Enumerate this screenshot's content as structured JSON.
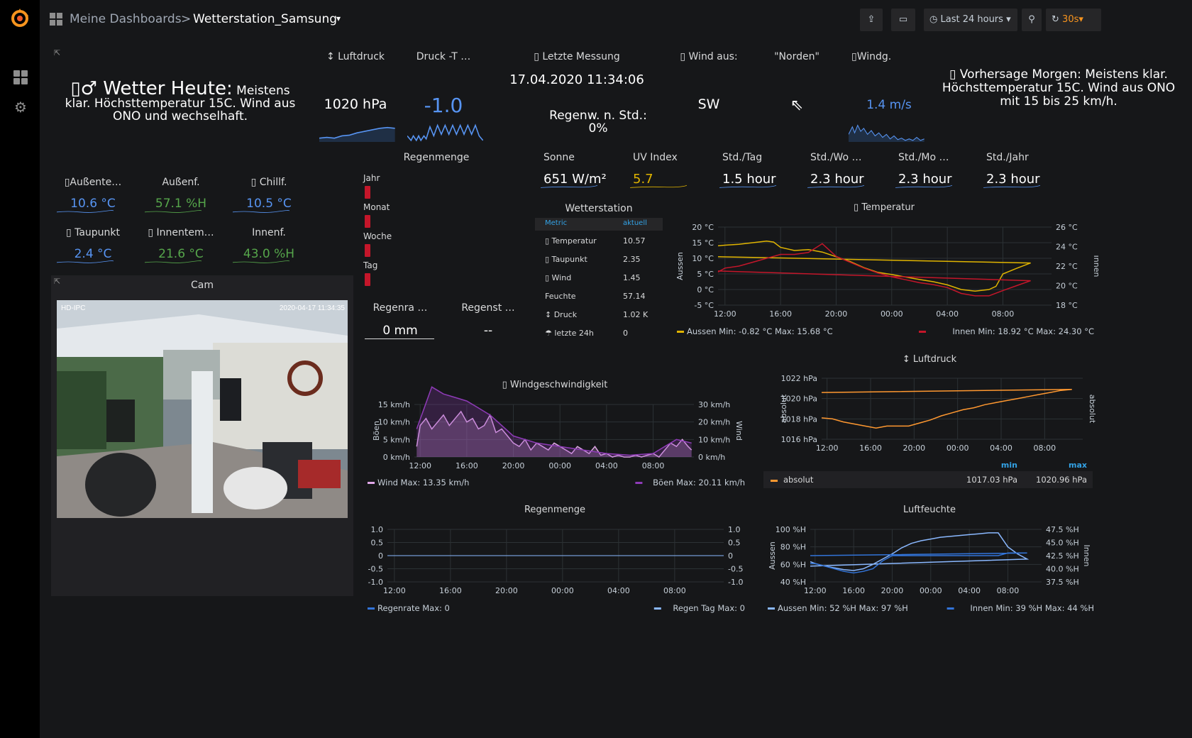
{
  "breadcrumb": {
    "parent": "Meine Dashboards",
    "separator": ">",
    "current": "Wetterstation_Samsung",
    "caret": "▾"
  },
  "toolbar": {
    "time_range": "Last 24 hours",
    "refresh": "30s"
  },
  "colors": {
    "accent": "#f7941e",
    "blue": "#5794f2",
    "lightblue": "#33a2e5",
    "green": "#56a64b",
    "yellow": "#e0b400",
    "red": "#c4162a",
    "purple": "#d683ce",
    "orange": "#ff9830"
  },
  "icons": {
    "logo": "grafana-logo-icon",
    "dashboards": "dashboards-grid-icon",
    "config": "gear-icon",
    "share": "share-icon",
    "tv": "tv-mode-icon",
    "clock": "clock-icon",
    "zoom": "zoom-out-icon",
    "refresh": "refresh-icon",
    "link": "panel-link-icon"
  },
  "wetter_heute": {
    "title": "▯♂ Wetter Heute:",
    "text": "Meistens klar. Höchsttemperatur 15C. Wind aus ONO und wechselhaft."
  },
  "stats": {
    "luftdruck": {
      "title": "↕ Luftdruck",
      "value": "1020 hPa"
    },
    "druck_t": {
      "title": "Druck -T …",
      "value": "-1.0"
    },
    "letzte_messung": {
      "title": "▯ Letzte Messung",
      "value": "17.04.2020 11:34:06"
    },
    "regenw": {
      "label": "Regenw. n. Std.:",
      "value": "0%"
    },
    "wind_aus": {
      "title": "▯ Wind aus:",
      "value": "SW"
    },
    "norden": {
      "title": "\"Norden\"",
      "value": "⇖"
    },
    "windg": {
      "title": "▯Windg.",
      "value": "1.4 m/s"
    },
    "vorhersage": {
      "text": "▯ Vorhersage Morgen: Meistens klar. Höchsttemperatur 15C. Wind aus ONO mit 15 bis 25 km/h."
    }
  },
  "sensors": [
    {
      "title": "▯Außente…",
      "value": "10.6 °C",
      "color": "#5794f2"
    },
    {
      "title": "Außenf.",
      "value": "57.1 %H",
      "color": "#56a64b"
    },
    {
      "title": "▯ Chillf.",
      "value": "10.5 °C",
      "color": "#5794f2"
    },
    {
      "title": "▯ Taupunkt",
      "value": "2.4 °C",
      "color": "#5794f2"
    },
    {
      "title": "▯ Innentem…",
      "value": "21.6 °C",
      "color": "#56a64b"
    },
    {
      "title": "Innenf.",
      "value": "43.0 %H",
      "color": "#56a64b"
    }
  ],
  "cam": {
    "title": "Cam",
    "osd_left": "HD-IPC",
    "osd_right": "2020-04-17 11:34:35"
  },
  "regenmenge_bars": {
    "title": "Regenmenge",
    "items": [
      "Jahr",
      "Monat",
      "Woche",
      "Tag"
    ]
  },
  "regenrate": {
    "title": "Regenra …",
    "value": "0 mm"
  },
  "regenst": {
    "title": "Regenst …",
    "value": "--"
  },
  "solar": [
    {
      "title": "Sonne",
      "value": "651 W/m²",
      "color": "#ffffff"
    },
    {
      "title": "UV Index",
      "value": "5.7",
      "color": "#e0b400"
    },
    {
      "title": "Std./Tag",
      "value": "1.5 hour",
      "color": "#ffffff"
    },
    {
      "title": "Std./Wo …",
      "value": "2.3 hour",
      "color": "#ffffff"
    },
    {
      "title": "Std./Mo …",
      "value": "2.3 hour",
      "color": "#ffffff"
    },
    {
      "title": "Std./Jahr",
      "value": "2.3 hour",
      "color": "#ffffff"
    }
  ],
  "wetterstation_table": {
    "title": "Wetterstation",
    "headers": [
      "Metric",
      "aktuell"
    ],
    "rows": [
      [
        "▯ Temperatur",
        "10.57"
      ],
      [
        "▯ Taupunkt",
        "2.35"
      ],
      [
        "▯ Wind",
        "1.45"
      ],
      [
        " Feuchte",
        "57.14"
      ],
      [
        "↕ Druck",
        "1.02 K"
      ],
      [
        "☂ letzte 24h",
        "0"
      ]
    ]
  },
  "chart_data": [
    {
      "id": "temperatur",
      "type": "line",
      "title": "▯ Temperatur",
      "x_ticks": [
        "12:00",
        "16:00",
        "20:00",
        "00:00",
        "04:00",
        "08:00"
      ],
      "ylabel": "Aussen",
      "y2label": "Innen",
      "y_ticks": [
        "20 °C",
        "15 °C",
        "10 °C",
        "5 °C",
        "0 °C",
        "-5 °C"
      ],
      "ylim": [
        -5,
        20
      ],
      "y2_ticks": [
        "26 °C",
        "24 °C",
        "22 °C",
        "20 °C",
        "18 °C"
      ],
      "y2lim": [
        18,
        26
      ],
      "series": [
        {
          "name": "Aussen",
          "axis": "left",
          "color": "#e0b400",
          "legend": "Min: -0.82 °C  Max: 15.68 °C",
          "x": [
            11.5,
            12,
            13,
            14,
            15,
            15.5,
            16,
            17,
            18,
            19,
            20,
            21,
            22,
            23,
            0,
            1,
            2,
            3,
            4,
            5,
            6,
            7,
            7.5,
            8,
            9,
            10,
            11.5
          ],
          "values": [
            14,
            14.2,
            14.5,
            15,
            15.5,
            15.2,
            13.5,
            12.5,
            12.8,
            12,
            10.5,
            9,
            7,
            5.5,
            4.8,
            4,
            3.2,
            2.5,
            1.5,
            0,
            -0.5,
            0,
            1,
            5,
            6.8,
            8.5,
            10.5
          ]
        },
        {
          "name": "Innen",
          "axis": "right",
          "color": "#c4162a",
          "legend": "Min: 18.92 °C  Max: 24.30 °C",
          "x": [
            11.5,
            12,
            13,
            14,
            15,
            16,
            17,
            18,
            19,
            20,
            21,
            22,
            23,
            0,
            1,
            2,
            3,
            4,
            5,
            6,
            7,
            8,
            9,
            10,
            11.5
          ],
          "values": [
            21.4,
            21.8,
            22,
            22.4,
            22.8,
            23.2,
            23.2,
            23.4,
            24.3,
            23,
            22.4,
            21.8,
            21.3,
            20.9,
            20.6,
            20.3,
            20.1,
            19.8,
            19.2,
            18.95,
            18.95,
            19.5,
            20,
            20.5,
            21.5
          ]
        }
      ]
    },
    {
      "id": "luftdruck",
      "type": "line",
      "title": "↕ Luftdruck",
      "x_ticks": [
        "12:00",
        "16:00",
        "20:00",
        "00:00",
        "04:00",
        "08:00"
      ],
      "ylabel": "absolut",
      "y2label": "absolut",
      "y_ticks": [
        "1022 hPa",
        "1020 hPa",
        "1018 hPa",
        "1016 hPa"
      ],
      "ylim": [
        1016,
        1022
      ],
      "legend_headers": [
        "min",
        "max"
      ],
      "series": [
        {
          "name": "absolut",
          "color": "#ff9830",
          "min": "1017.03 hPa",
          "max": "1020.96 hPa",
          "x": [
            11.5,
            12.5,
            13.5,
            14.5,
            15.5,
            16.5,
            17.5,
            18.5,
            19.5,
            20.5,
            21.5,
            22.5,
            23.5,
            0.5,
            1.5,
            2.5,
            3.5,
            4.5,
            5.5,
            6.5,
            7.5,
            8.5,
            9.5,
            10.5,
            11.5
          ],
          "values": [
            1018.1,
            1018,
            1017.7,
            1017.5,
            1017.3,
            1017.1,
            1017.3,
            1017.3,
            1017.3,
            1017.6,
            1017.9,
            1018.3,
            1018.6,
            1018.9,
            1019.1,
            1019.4,
            1019.6,
            1019.8,
            1020,
            1020.2,
            1020.4,
            1020.6,
            1020.8,
            1020.9,
            1020.6
          ]
        }
      ]
    },
    {
      "id": "windgeschwindigkeit",
      "type": "area",
      "title": "▯ Windgeschwindigkeit",
      "x_ticks": [
        "12:00",
        "16:00",
        "20:00",
        "00:00",
        "04:00",
        "08:00"
      ],
      "ylabel": "Böen",
      "y2label": "Wind",
      "y_ticks": [
        "15 km/h",
        "10 km/h",
        "5 km/h",
        "0 km/h"
      ],
      "ylim": [
        0,
        15
      ],
      "y2_ticks": [
        "30 km/h",
        "20 km/h",
        "10 km/h",
        "0 km/h"
      ],
      "y2lim": [
        0,
        30
      ],
      "series": [
        {
          "name": "Wind",
          "color": "#e0a8e8",
          "legend": "Max: 13.35 km/h",
          "x": [
            11.7,
            12,
            12.5,
            13,
            13.5,
            14,
            14.5,
            15,
            15.5,
            16,
            16.5,
            17,
            17.5,
            18,
            18.5,
            19,
            19.5,
            20,
            20.5,
            21,
            21.5,
            22,
            22.5,
            23,
            23.5,
            0,
            0.5,
            1,
            1.5,
            2,
            2.5,
            3,
            3.5,
            4,
            4.5,
            5,
            5.5,
            6,
            6.5,
            7,
            7.5,
            8,
            8.5,
            9,
            9.5,
            10,
            10.5,
            11,
            11.3
          ],
          "values": [
            3,
            9,
            11,
            8,
            10,
            12,
            9,
            11,
            13,
            10,
            11,
            8,
            9,
            12,
            7,
            8,
            6,
            4,
            3,
            5,
            2,
            4,
            3,
            2,
            4,
            3,
            2,
            1,
            3,
            2,
            1,
            3,
            0.5,
            1,
            0,
            0.5,
            0,
            0,
            0.5,
            0,
            0.5,
            1,
            0,
            2,
            4,
            3,
            5,
            3,
            2
          ]
        },
        {
          "name": "Böen",
          "color": "#8f3bb8",
          "legend": "Max: 20.11 km/h",
          "x": [
            11.7,
            13,
            14,
            15,
            16,
            17,
            18,
            19,
            20,
            22,
            0,
            2,
            4,
            6,
            8,
            9,
            10,
            11.3
          ],
          "values": [
            8,
            20,
            18,
            17,
            16,
            14,
            12,
            9,
            6,
            4,
            3,
            2,
            1,
            0.5,
            1,
            3,
            5,
            4
          ]
        }
      ]
    },
    {
      "id": "regenmenge",
      "type": "line",
      "title": "Regenmenge",
      "x_ticks": [
        "12:00",
        "16:00",
        "20:00",
        "00:00",
        "04:00",
        "08:00"
      ],
      "y_ticks": [
        "1.0",
        "0.5",
        "0",
        "-0.5",
        "-1.0"
      ],
      "ylim": [
        -1,
        1
      ],
      "y2_ticks": [
        "1.0",
        "0.5",
        "0",
        "-0.5",
        "-1.0"
      ],
      "series": [
        {
          "name": "Regenrate",
          "color": "#3274d9",
          "legend": "Max: 0",
          "x": [
            11.5,
            11.5
          ],
          "values": [
            0,
            0
          ]
        },
        {
          "name": "Regen Tag",
          "color": "#8ab8ff",
          "legend": "Max: 0",
          "x": [
            11.5,
            11.5
          ],
          "values": [
            0,
            0
          ]
        }
      ]
    },
    {
      "id": "luftfeuchte",
      "type": "line",
      "title": "Luftfeuchte",
      "x_ticks": [
        "12:00",
        "16:00",
        "20:00",
        "00:00",
        "04:00",
        "08:00"
      ],
      "ylabel": "Aussen",
      "y2label": "Innen",
      "y_ticks": [
        "100 %H",
        "80 %H",
        "60 %H",
        "40 %H"
      ],
      "ylim": [
        40,
        100
      ],
      "y2_ticks": [
        "47.5 %H",
        "45.0 %H",
        "42.5 %H",
        "40.0 %H",
        "37.5 %H"
      ],
      "y2lim": [
        37.5,
        47.5
      ],
      "series": [
        {
          "name": "Aussen",
          "axis": "left",
          "color": "#8ab8ff",
          "legend": "Min: 52 %H  Max: 97 %H",
          "x": [
            11.5,
            12,
            13,
            14,
            15,
            16,
            17,
            18,
            19,
            20,
            21,
            22,
            23,
            0,
            1,
            2,
            3,
            4,
            5,
            6,
            7,
            8,
            9,
            10,
            11.5
          ],
          "values": [
            63,
            61,
            58,
            56,
            54,
            53,
            55,
            60,
            66,
            72,
            79,
            84,
            87,
            89,
            91,
            92,
            93,
            94,
            95,
            96,
            96,
            80,
            72,
            66,
            58
          ]
        },
        {
          "name": "Innen",
          "axis": "right",
          "color": "#3274d9",
          "legend": "Min: 39 %H  Max: 44 %H",
          "x": [
            11.5,
            12,
            13,
            14,
            15,
            16,
            17,
            18,
            19,
            20,
            21,
            22,
            23,
            0,
            1,
            2,
            3,
            4,
            5,
            6,
            7,
            8,
            9,
            10,
            11.5
          ],
          "values": [
            41,
            41,
            40.5,
            40,
            39.5,
            39.2,
            39.5,
            40,
            41.5,
            42.5,
            42.5,
            42.5,
            42.5,
            42.5,
            42.5,
            42.5,
            42.5,
            42.5,
            42.5,
            42.5,
            42.5,
            43,
            43,
            43,
            42.5
          ]
        }
      ]
    }
  ]
}
